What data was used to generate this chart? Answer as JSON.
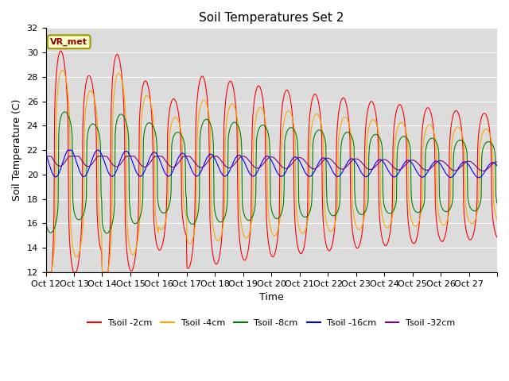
{
  "title": "Soil Temperatures Set 2",
  "xlabel": "Time",
  "ylabel": "Soil Temperature (C)",
  "ylim": [
    12,
    32
  ],
  "yticks": [
    12,
    14,
    16,
    18,
    20,
    22,
    24,
    26,
    28,
    30,
    32
  ],
  "bg_color": "#dcdcdc",
  "annotation_text": "VR_met",
  "annotation_bg": "#ffffcc",
  "annotation_edge": "#999900",
  "series_colors": [
    "red",
    "orange",
    "green",
    "blue",
    "purple"
  ],
  "series_labels": [
    "Tsoil -2cm",
    "Tsoil -4cm",
    "Tsoil -8cm",
    "Tsoil -16cm",
    "Tsoil -32cm"
  ],
  "x_tick_labels": [
    "Oct 12",
    "Oct 13",
    "Oct 14",
    "Oct 15",
    "Oct 16",
    "Oct 17",
    "Oct 18",
    "Oct 19",
    "Oct 20",
    "Oct 21",
    "Oct 22",
    "Oct 23",
    "Oct 24",
    "Oct 25",
    "Oct 26",
    "Oct 27"
  ],
  "n_days": 16,
  "n_points_per_day": 48
}
